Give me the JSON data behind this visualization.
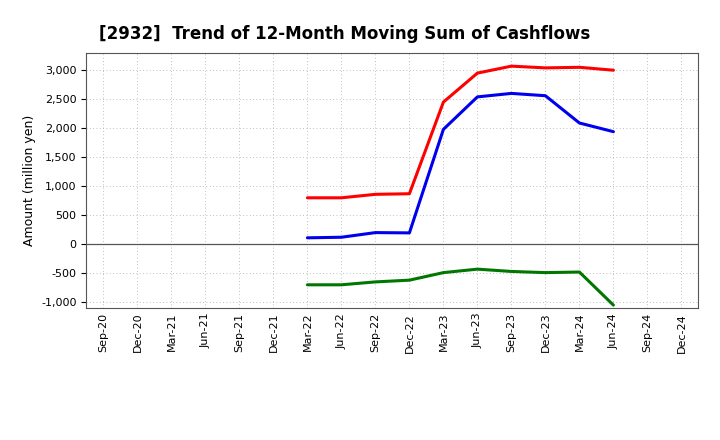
{
  "title": "[2932]  Trend of 12-Month Moving Sum of Cashflows",
  "ylabel": "Amount (million yen)",
  "ylim": [
    -1100,
    3300
  ],
  "yticks": [
    -1000,
    -500,
    0,
    500,
    1000,
    1500,
    2000,
    2500,
    3000
  ],
  "background_color": "#ffffff",
  "plot_bg_color": "#ffffff",
  "x_labels": [
    "Sep-20",
    "Dec-20",
    "Mar-21",
    "Jun-21",
    "Sep-21",
    "Dec-21",
    "Mar-22",
    "Jun-22",
    "Sep-22",
    "Dec-22",
    "Mar-23",
    "Jun-23",
    "Sep-23",
    "Dec-23",
    "Mar-24",
    "Jun-24",
    "Sep-24",
    "Dec-24"
  ],
  "op_vals": [
    null,
    null,
    null,
    null,
    null,
    null,
    800,
    800,
    860,
    870,
    2450,
    2950,
    3070,
    3040,
    3050,
    3000,
    null,
    null
  ],
  "inv_vals": [
    null,
    null,
    null,
    null,
    null,
    null,
    -700,
    -700,
    -650,
    -620,
    -490,
    -430,
    -470,
    -490,
    -480,
    -1050,
    null,
    null
  ],
  "free_vals": [
    null,
    null,
    null,
    null,
    null,
    null,
    110,
    120,
    200,
    195,
    1980,
    2540,
    2600,
    2560,
    2090,
    1940,
    null,
    null
  ],
  "colors": {
    "operating": "#ff0000",
    "investing": "#007700",
    "free": "#0000ee"
  },
  "line_width": 2.2,
  "title_fontsize": 12,
  "ylabel_fontsize": 9,
  "tick_fontsize": 8,
  "legend_fontsize": 9
}
